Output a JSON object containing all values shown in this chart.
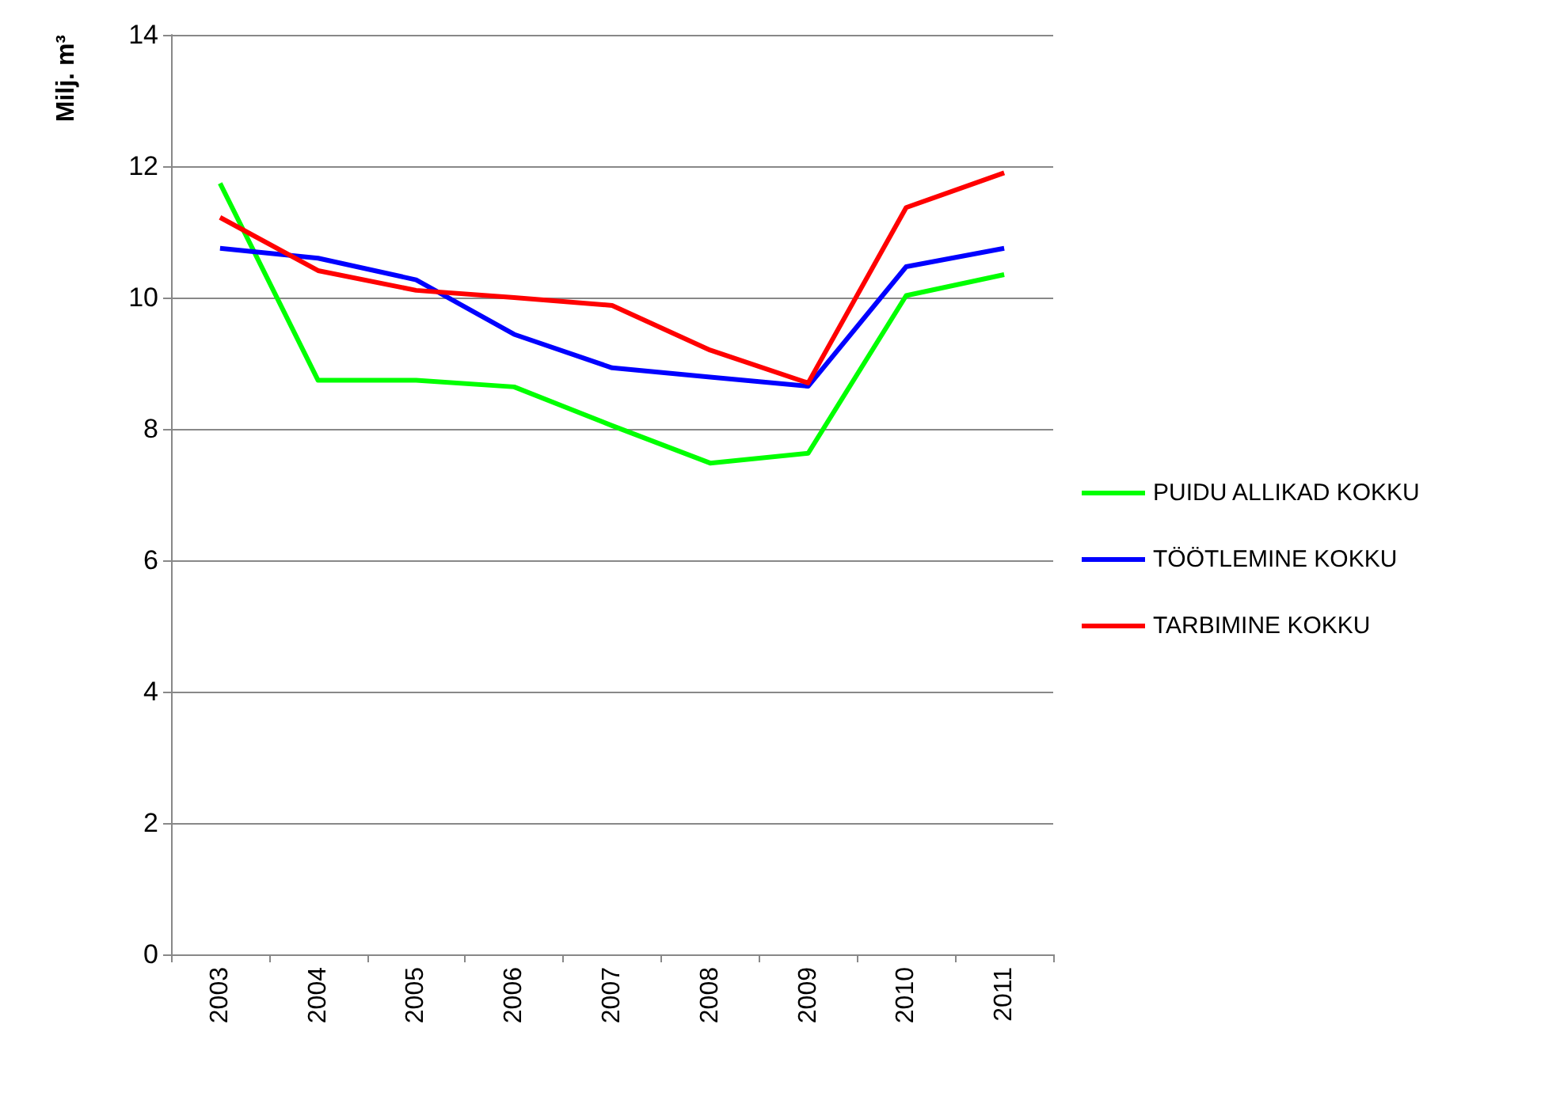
{
  "chart_data": {
    "type": "line",
    "ylabel": "Milj. m³",
    "categories": [
      "2003",
      "2004",
      "2005",
      "2006",
      "2007",
      "2008",
      "2009",
      "2010",
      "2011"
    ],
    "series": [
      {
        "name": "PUIDU ALLIKAD KOKKU",
        "color": "#00ff00",
        "values": [
          11.74,
          8.74,
          8.74,
          8.64,
          8.05,
          7.48,
          7.63,
          10.03,
          10.35
        ]
      },
      {
        "name": "TÖÖTLEMINE KOKKU",
        "color": "#0000ff",
        "values": [
          10.75,
          10.6,
          10.27,
          9.44,
          8.93,
          8.79,
          8.65,
          10.47,
          10.75
        ]
      },
      {
        "name": "TARBIMINE KOKKU",
        "color": "#ff0000",
        "values": [
          11.22,
          10.41,
          10.11,
          10.0,
          9.88,
          9.2,
          8.7,
          11.37,
          11.9
        ]
      }
    ],
    "ylim": [
      0,
      14
    ],
    "yticks": [
      0,
      2,
      4,
      6,
      8,
      10,
      12,
      14
    ],
    "grid": "y",
    "legend": "right",
    "marker": "none",
    "line_style": "solid"
  }
}
